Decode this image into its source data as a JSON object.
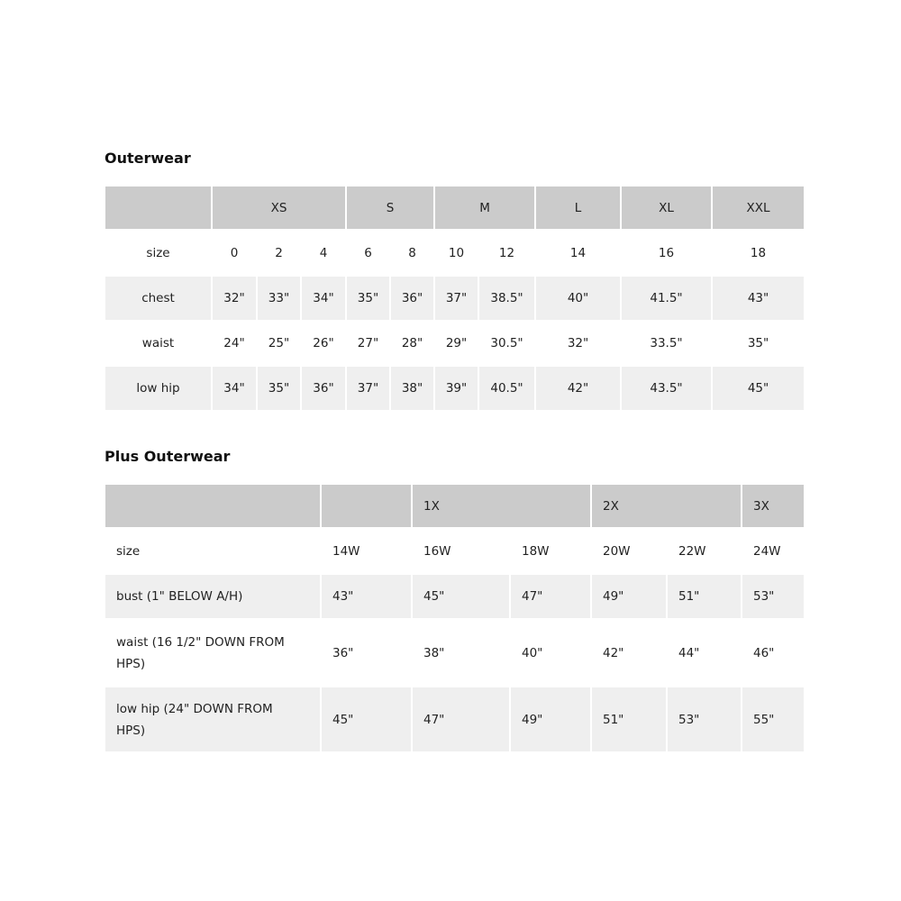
{
  "sections": [
    {
      "title": "Outerwear",
      "header": [
        {
          "label": "",
          "span": 1
        },
        {
          "label": "XS",
          "span": 3
        },
        {
          "label": "S",
          "span": 2
        },
        {
          "label": "M",
          "span": 2
        },
        {
          "label": "L",
          "span": 1
        },
        {
          "label": "XL",
          "span": 1
        },
        {
          "label": "XXL",
          "span": 1
        }
      ],
      "rows": [
        {
          "label": "size",
          "values": [
            "0",
            "2",
            "4",
            "6",
            "8",
            "10",
            "12",
            "14",
            "16",
            "18"
          ]
        },
        {
          "label": "chest",
          "values": [
            "32\"",
            "33\"",
            "34\"",
            "35\"",
            "36\"",
            "37\"",
            "38.5\"",
            "40\"",
            "41.5\"",
            "43\""
          ]
        },
        {
          "label": "waist",
          "values": [
            "24\"",
            "25\"",
            "26\"",
            "27\"",
            "28\"",
            "29\"",
            "30.5\"",
            "32\"",
            "33.5\"",
            "35\""
          ]
        },
        {
          "label": "low hip",
          "values": [
            "34\"",
            "35\"",
            "36\"",
            "37\"",
            "38\"",
            "39\"",
            "40.5\"",
            "42\"",
            "43.5\"",
            "45\""
          ]
        }
      ]
    },
    {
      "title": "Plus Outerwear",
      "header": [
        {
          "label": "",
          "span": 1
        },
        {
          "label": "",
          "span": 1
        },
        {
          "label": "1X",
          "span": 2
        },
        {
          "label": "2X",
          "span": 2
        },
        {
          "label": "3X",
          "span": 1
        }
      ],
      "rows": [
        {
          "label": "size",
          "values": [
            "14W",
            "16W",
            "18W",
            "20W",
            "22W",
            "24W"
          ]
        },
        {
          "label": "bust (1\" BELOW A/H)",
          "values": [
            "43\"",
            "45\"",
            "47\"",
            "49\"",
            "51\"",
            "53\""
          ]
        },
        {
          "label": "waist (16 1/2\" DOWN FROM HPS)",
          "values": [
            "36\"",
            "38\"",
            "40\"",
            "42\"",
            "44\"",
            "46\""
          ]
        },
        {
          "label": "low hip (24\" DOWN FROM HPS)",
          "values": [
            "45\"",
            "47\"",
            "49\"",
            "51\"",
            "53\"",
            "55\""
          ]
        }
      ]
    }
  ],
  "colors": {
    "header_bg": "#cbcbcb",
    "stripe_bg": "#efefef"
  }
}
